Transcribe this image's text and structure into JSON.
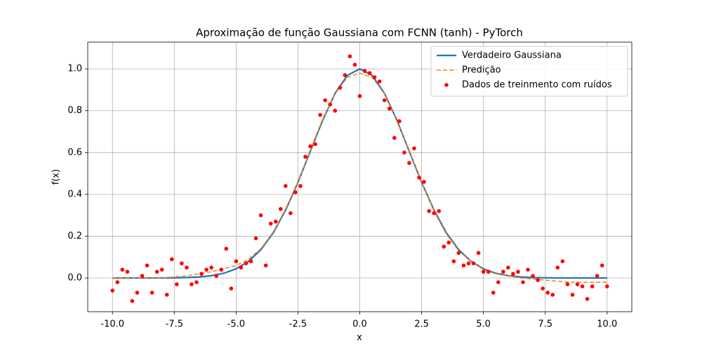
{
  "chart_data": {
    "type": "line",
    "title": "Aproximação de função Gaussiana com FCNN (tanh) - PyTorch",
    "xlabel": "x",
    "ylabel": "f(x)",
    "xlim": [
      -11,
      11
    ],
    "ylim": [
      -0.161,
      1.128
    ],
    "xticks": [
      {
        "value": -10,
        "label": "-10.0"
      },
      {
        "value": -7.5,
        "label": "-7.5"
      },
      {
        "value": -5,
        "label": "-5.0"
      },
      {
        "value": -2.5,
        "label": "-2.5"
      },
      {
        "value": 0,
        "label": "0.0"
      },
      2.5,
      {
        "value": 5,
        "label": "5.0"
      },
      7.5,
      {
        "value": 10,
        "label": "10.0"
      }
    ],
    "yticks": [
      {
        "value": 0,
        "label": "0.0"
      },
      0.2,
      0.4,
      0.6,
      0.8,
      {
        "value": 1,
        "label": "1.0"
      }
    ],
    "grid": true,
    "legend": "upper right",
    "series": [
      {
        "name": "Verdadeiro Gaussiana",
        "type": "line",
        "linestyle": "solid",
        "color": "#1f77b4",
        "x": [
          -10,
          -9.5,
          -9,
          -8.5,
          -8,
          -7.5,
          -7,
          -6.5,
          -6,
          -5.5,
          -5,
          -4.5,
          -4,
          -3.5,
          -3,
          -2.5,
          -2,
          -1.5,
          -1,
          -0.5,
          0,
          0.5,
          1,
          1.5,
          2,
          2.5,
          3,
          3.5,
          4,
          4.5,
          5,
          5.5,
          6,
          6.5,
          7,
          7.5,
          8,
          8.5,
          9,
          9.5,
          10
        ],
        "values": [
          0,
          0,
          0,
          0.0001,
          0.0003,
          0.0009,
          0.0022,
          0.0051,
          0.0111,
          0.0228,
          0.0439,
          0.0796,
          0.1353,
          0.2163,
          0.3247,
          0.4578,
          0.6065,
          0.7548,
          0.8825,
          0.9692,
          1,
          0.9692,
          0.8825,
          0.7548,
          0.6065,
          0.4578,
          0.3247,
          0.2163,
          0.1353,
          0.0796,
          0.0439,
          0.0228,
          0.0111,
          0.0051,
          0.0022,
          0.0009,
          0.0003,
          0.0001,
          0,
          0,
          0
        ]
      },
      {
        "name": "Predição",
        "type": "line",
        "linestyle": "dashed",
        "color": "#ff7f0e",
        "x": [
          -10,
          -9.5,
          -9,
          -8.5,
          -8,
          -7.5,
          -7,
          -6.5,
          -6,
          -5.5,
          -5,
          -4.5,
          -4,
          -3.5,
          -3,
          -2.5,
          -2,
          -1.5,
          -1,
          -0.5,
          0,
          0.5,
          1,
          1.5,
          2,
          2.5,
          3,
          3.5,
          4,
          4.5,
          5,
          5.5,
          6,
          6.5,
          7,
          7.5,
          8,
          8.5,
          9,
          9.5,
          10
        ],
        "values": [
          0,
          0,
          0,
          0,
          0,
          0.005,
          0.01,
          0.02,
          0.03,
          0.045,
          0.06,
          0.09,
          0.14,
          0.22,
          0.33,
          0.46,
          0.61,
          0.76,
          0.88,
          0.96,
          0.98,
          0.96,
          0.88,
          0.75,
          0.61,
          0.46,
          0.32,
          0.21,
          0.13,
          0.08,
          0.04,
          0.02,
          0.01,
          0,
          -0.005,
          -0.01,
          -0.015,
          -0.02,
          -0.02,
          -0.02,
          -0.02
        ]
      },
      {
        "name": "Dados de treinmento com ruídos",
        "type": "scatter",
        "color": "#ff0000",
        "x": [
          -10,
          -9.8,
          -9.6,
          -9.4,
          -9.2,
          -9,
          -8.8,
          -8.6,
          -8.4,
          -8.2,
          -8,
          -7.8,
          -7.6,
          -7.4,
          -7.2,
          -7,
          -6.8,
          -6.6,
          -6.4,
          -6.2,
          -6,
          -5.8,
          -5.6,
          -5.4,
          -5.2,
          -5,
          -4.8,
          -4.6,
          -4.4,
          -4.2,
          -4,
          -3.8,
          -3.6,
          -3.4,
          -3.2,
          -3,
          -2.8,
          -2.6,
          -2.4,
          -2.2,
          -2,
          -1.8,
          -1.6,
          -1.4,
          -1.2,
          -1,
          -0.8,
          -0.6,
          -0.4,
          -0.2,
          0,
          0.2,
          0.4,
          0.6,
          0.8,
          1,
          1.2,
          1.4,
          1.6,
          1.8,
          2,
          2.2,
          2.4,
          2.6,
          2.8,
          3,
          3.2,
          3.4,
          3.6,
          3.8,
          4,
          4.2,
          4.4,
          4.6,
          4.8,
          5,
          5.2,
          5.4,
          5.6,
          5.8,
          6,
          6.2,
          6.4,
          6.6,
          6.8,
          7,
          7.2,
          7.4,
          7.6,
          7.8,
          8,
          8.2,
          8.4,
          8.6,
          8.8,
          9,
          9.2,
          9.4,
          9.6,
          9.8,
          10
        ],
        "values": [
          -0.06,
          -0.02,
          0.04,
          0.03,
          -0.11,
          -0.07,
          0.01,
          0.06,
          -0.07,
          0.03,
          0.04,
          -0.08,
          0.09,
          -0.03,
          0.07,
          0.05,
          -0.03,
          -0.02,
          0.02,
          0.04,
          0.05,
          0.01,
          0.04,
          0.14,
          -0.05,
          0.08,
          0.05,
          0.07,
          0.08,
          0.19,
          0.3,
          0.06,
          0.26,
          0.27,
          0.33,
          0.44,
          0.31,
          0.41,
          0.44,
          0.58,
          0.63,
          0.64,
          0.78,
          0.85,
          0.83,
          0.8,
          0.91,
          0.97,
          1.06,
          1.02,
          0.87,
          0.99,
          0.98,
          0.96,
          0.94,
          0.85,
          0.81,
          0.67,
          0.75,
          0.6,
          0.55,
          0.62,
          0.48,
          0.46,
          0.32,
          0.31,
          0.32,
          0.15,
          0.17,
          0.08,
          0.12,
          0.06,
          0.07,
          0.07,
          0.12,
          0.03,
          0.03,
          -0.07,
          -0.02,
          0.03,
          0.05,
          0.02,
          0.03,
          -0.02,
          0.04,
          0.01,
          -0.01,
          -0.05,
          -0.07,
          -0.08,
          0.05,
          0.08,
          -0.03,
          -0.08,
          -0.03,
          -0.04,
          -0.1,
          -0.04,
          0.01,
          0.06,
          -0.04
        ]
      }
    ]
  }
}
